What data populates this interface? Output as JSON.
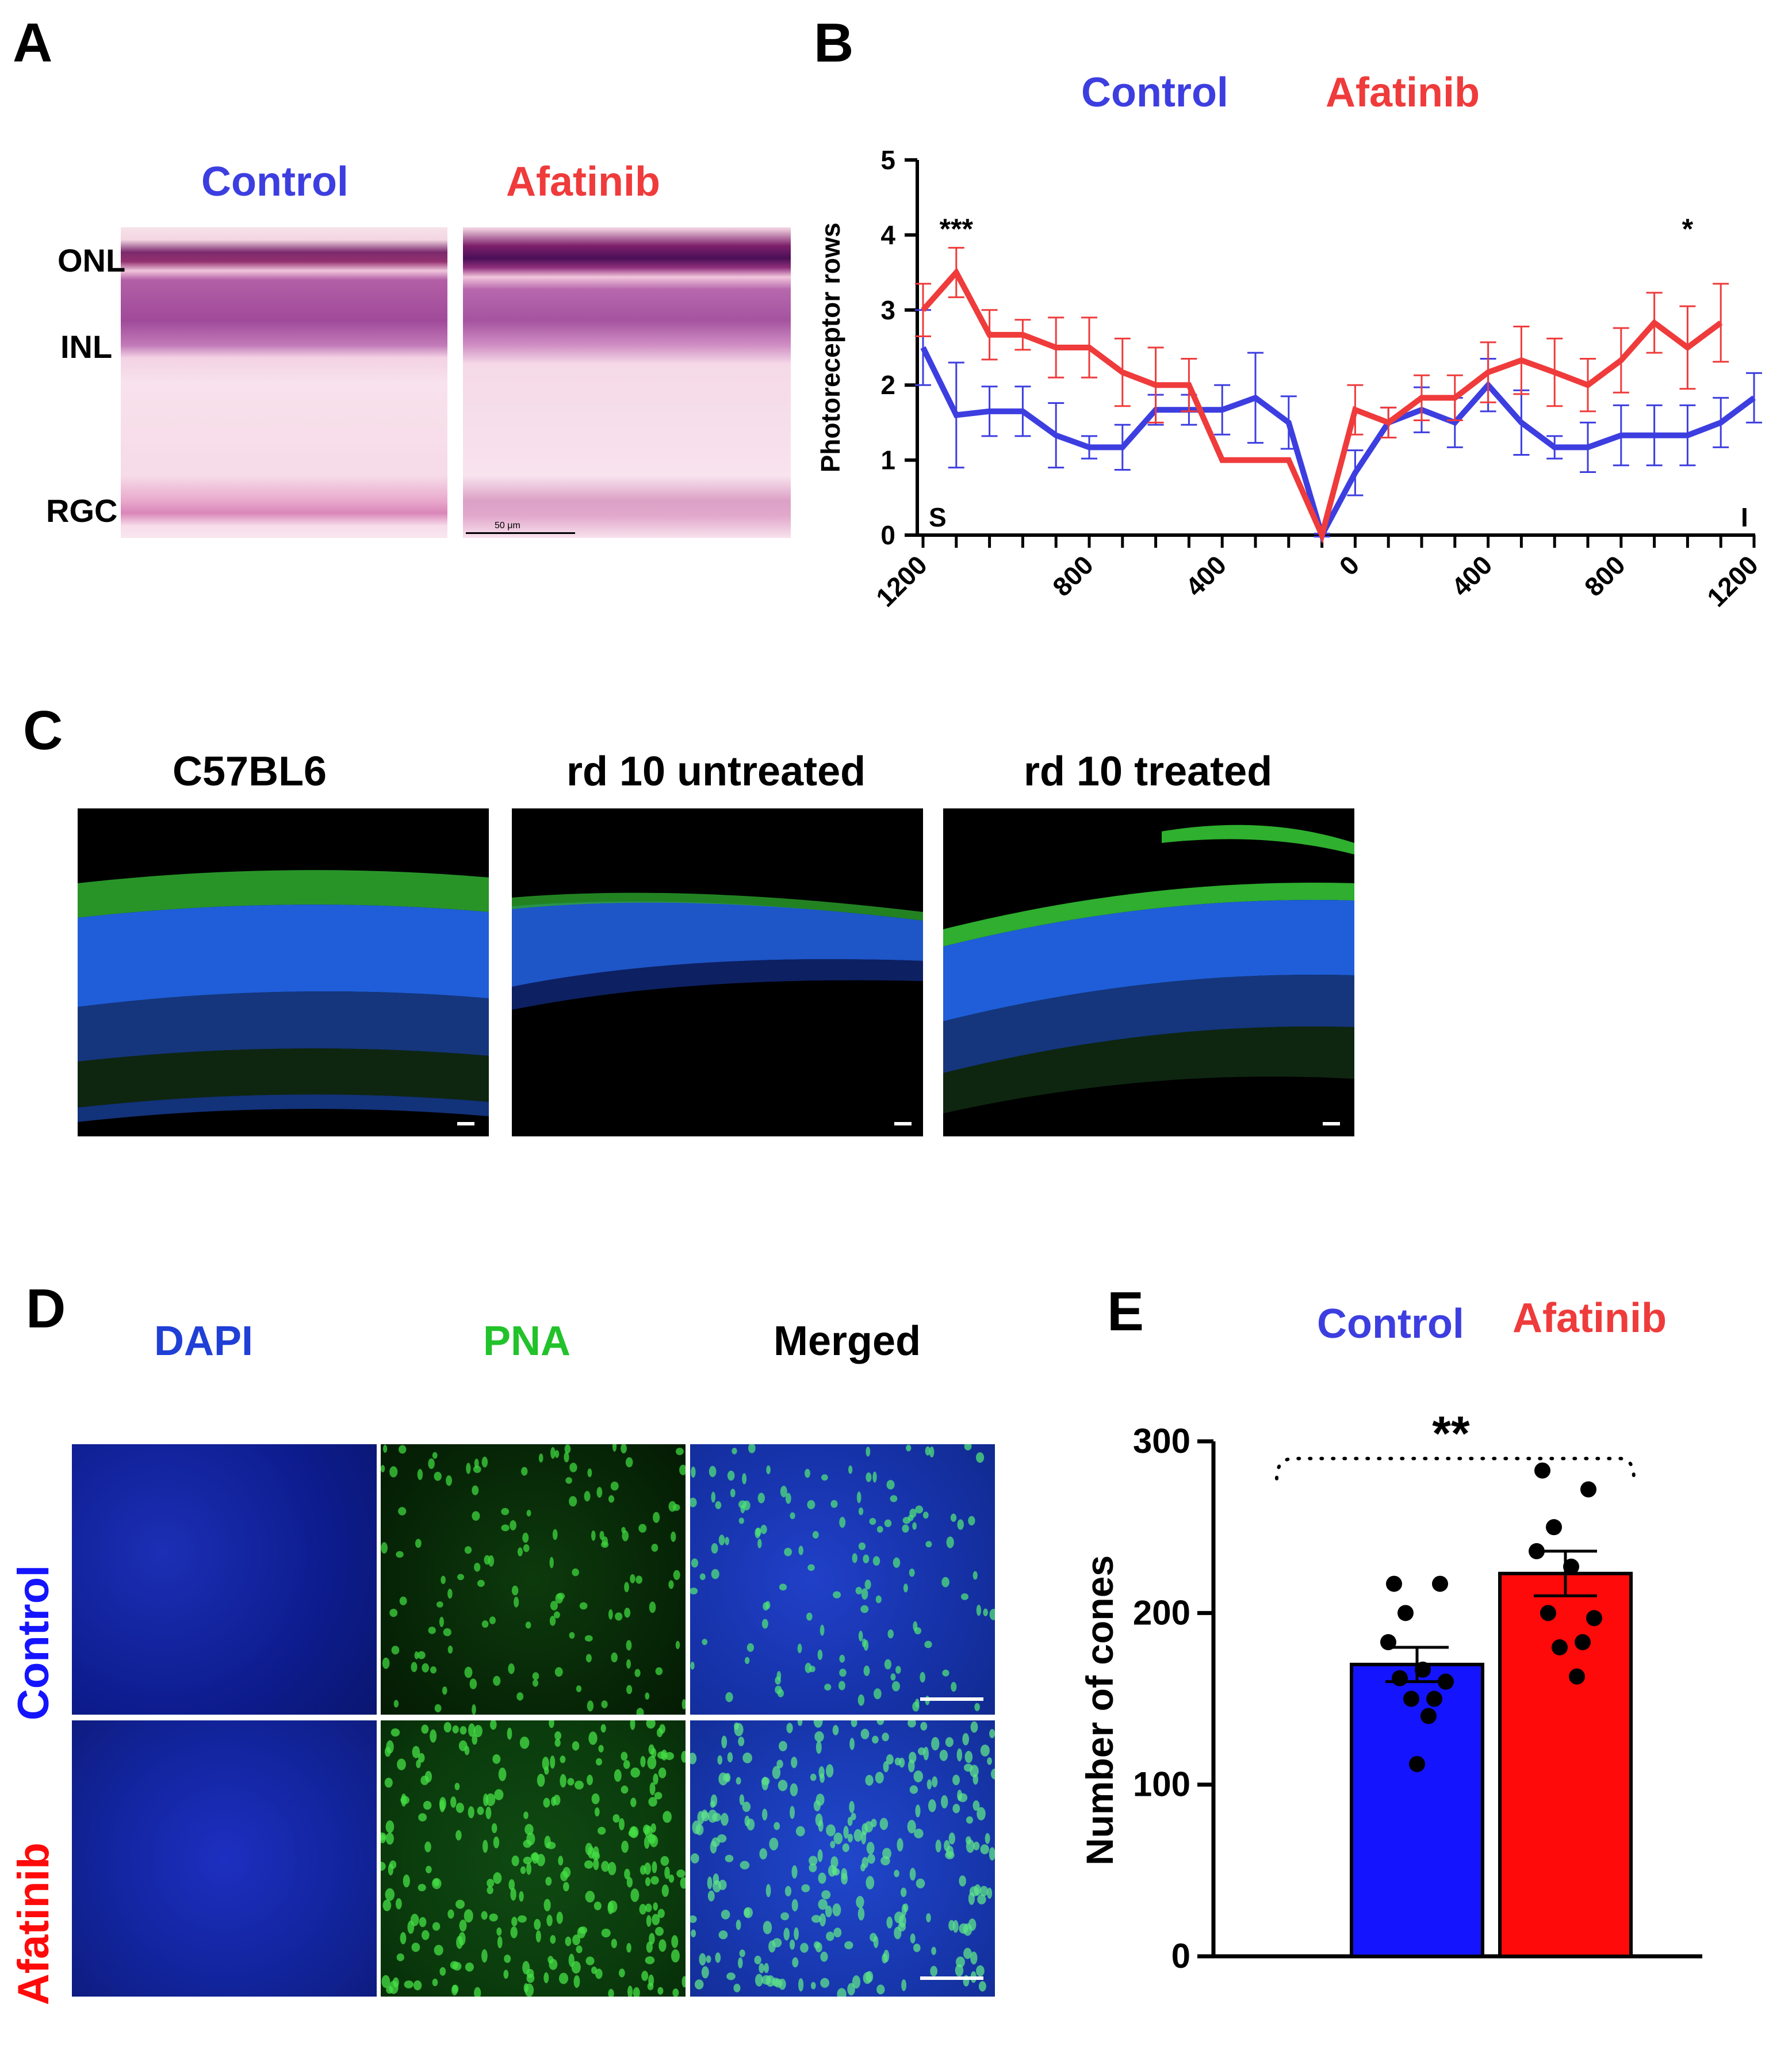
{
  "panel_a": {
    "letter": "A",
    "col_labels": [
      "Control",
      "Afatinib"
    ],
    "layer_labels": [
      "ONL",
      "INL",
      "RGC"
    ],
    "scale_bar": "50 μm",
    "colors": {
      "control": "#3d3ee0",
      "afatinib": "#ef3b3b"
    }
  },
  "panel_b": {
    "letter": "B",
    "legend": [
      "Control",
      "Afatinib"
    ],
    "chart_data": {
      "type": "line",
      "ylabel": "Photoreceptor rows",
      "ylim": [
        0,
        5
      ],
      "yticks": [
        0,
        1,
        2,
        3,
        4,
        5
      ],
      "xtick_labels": [
        "1200",
        "800",
        "400",
        "0",
        "400",
        "800",
        "1200"
      ],
      "corner_labels": {
        "left": "S",
        "right": "I"
      },
      "annotations": [
        {
          "text": "***",
          "index": 1
        },
        {
          "text": "*",
          "index": 23
        }
      ],
      "series": [
        {
          "name": "Control",
          "color": "#3d3ee0",
          "values": [
            2.5,
            1.6,
            1.65,
            1.65,
            1.33,
            1.17,
            1.17,
            1.67,
            1.67,
            1.67,
            1.83,
            1.5,
            0,
            0.83,
            1.5,
            1.67,
            1.5,
            2.0,
            1.5,
            1.17,
            1.17,
            1.33,
            1.33,
            1.33,
            1.5,
            1.83
          ],
          "errors": [
            0.5,
            0.7,
            0.33,
            0.33,
            0.43,
            0.15,
            0.3,
            0.2,
            0.2,
            0.33,
            0.6,
            0.35,
            0.02,
            0.3,
            0.2,
            0.3,
            0.33,
            0.35,
            0.43,
            0.15,
            0.33,
            0.4,
            0.4,
            0.4,
            0.33,
            0.33
          ]
        },
        {
          "name": "Afatinib",
          "color": "#ef3b3b",
          "values": [
            3.0,
            3.5,
            2.67,
            2.67,
            2.5,
            2.5,
            2.17,
            2.0,
            2.0,
            1.0,
            1.0,
            1.0,
            0,
            1.67,
            1.5,
            1.83,
            1.83,
            2.17,
            2.33,
            2.17,
            2.0,
            2.33,
            2.83,
            2.5,
            2.83
          ],
          "errors": [
            0.35,
            0.33,
            0.33,
            0.2,
            0.4,
            0.4,
            0.45,
            0.5,
            0.35,
            0,
            0,
            0,
            0,
            0.33,
            0.2,
            0.3,
            0.3,
            0.4,
            0.45,
            0.45,
            0.35,
            0.43,
            0.4,
            0.55,
            0.52
          ]
        }
      ]
    }
  },
  "panel_c": {
    "letter": "C",
    "titles": [
      "C57BL6",
      "rd 10 untreated",
      "rd 10 treated"
    ]
  },
  "panel_d": {
    "letter": "D",
    "col_labels": [
      "DAPI",
      "PNA",
      "Merged"
    ],
    "row_labels": [
      "Control",
      "Afatinib"
    ],
    "colors": {
      "dapi": "#1f3fd6",
      "pna": "#22c22a",
      "merged": "#000000"
    }
  },
  "panel_e": {
    "letter": "E",
    "legend": [
      "Control",
      "Afatinib"
    ],
    "significance": "**",
    "chart_data": {
      "type": "bar",
      "categories": [
        "Control",
        "Afatinib"
      ],
      "values": [
        170,
        223
      ],
      "sem": [
        10,
        13
      ],
      "colors": [
        "#1414ff",
        "#ff0a0a"
      ],
      "ylabel": "Number of cones",
      "ylim": [
        0,
        300
      ],
      "yticks": [
        0,
        100,
        200,
        300
      ],
      "points": [
        [
          217,
          217,
          200,
          183,
          167,
          162,
          160,
          150,
          150,
          140,
          112
        ],
        [
          283,
          272,
          250,
          236,
          227,
          200,
          197,
          183,
          180,
          163
        ]
      ]
    }
  }
}
